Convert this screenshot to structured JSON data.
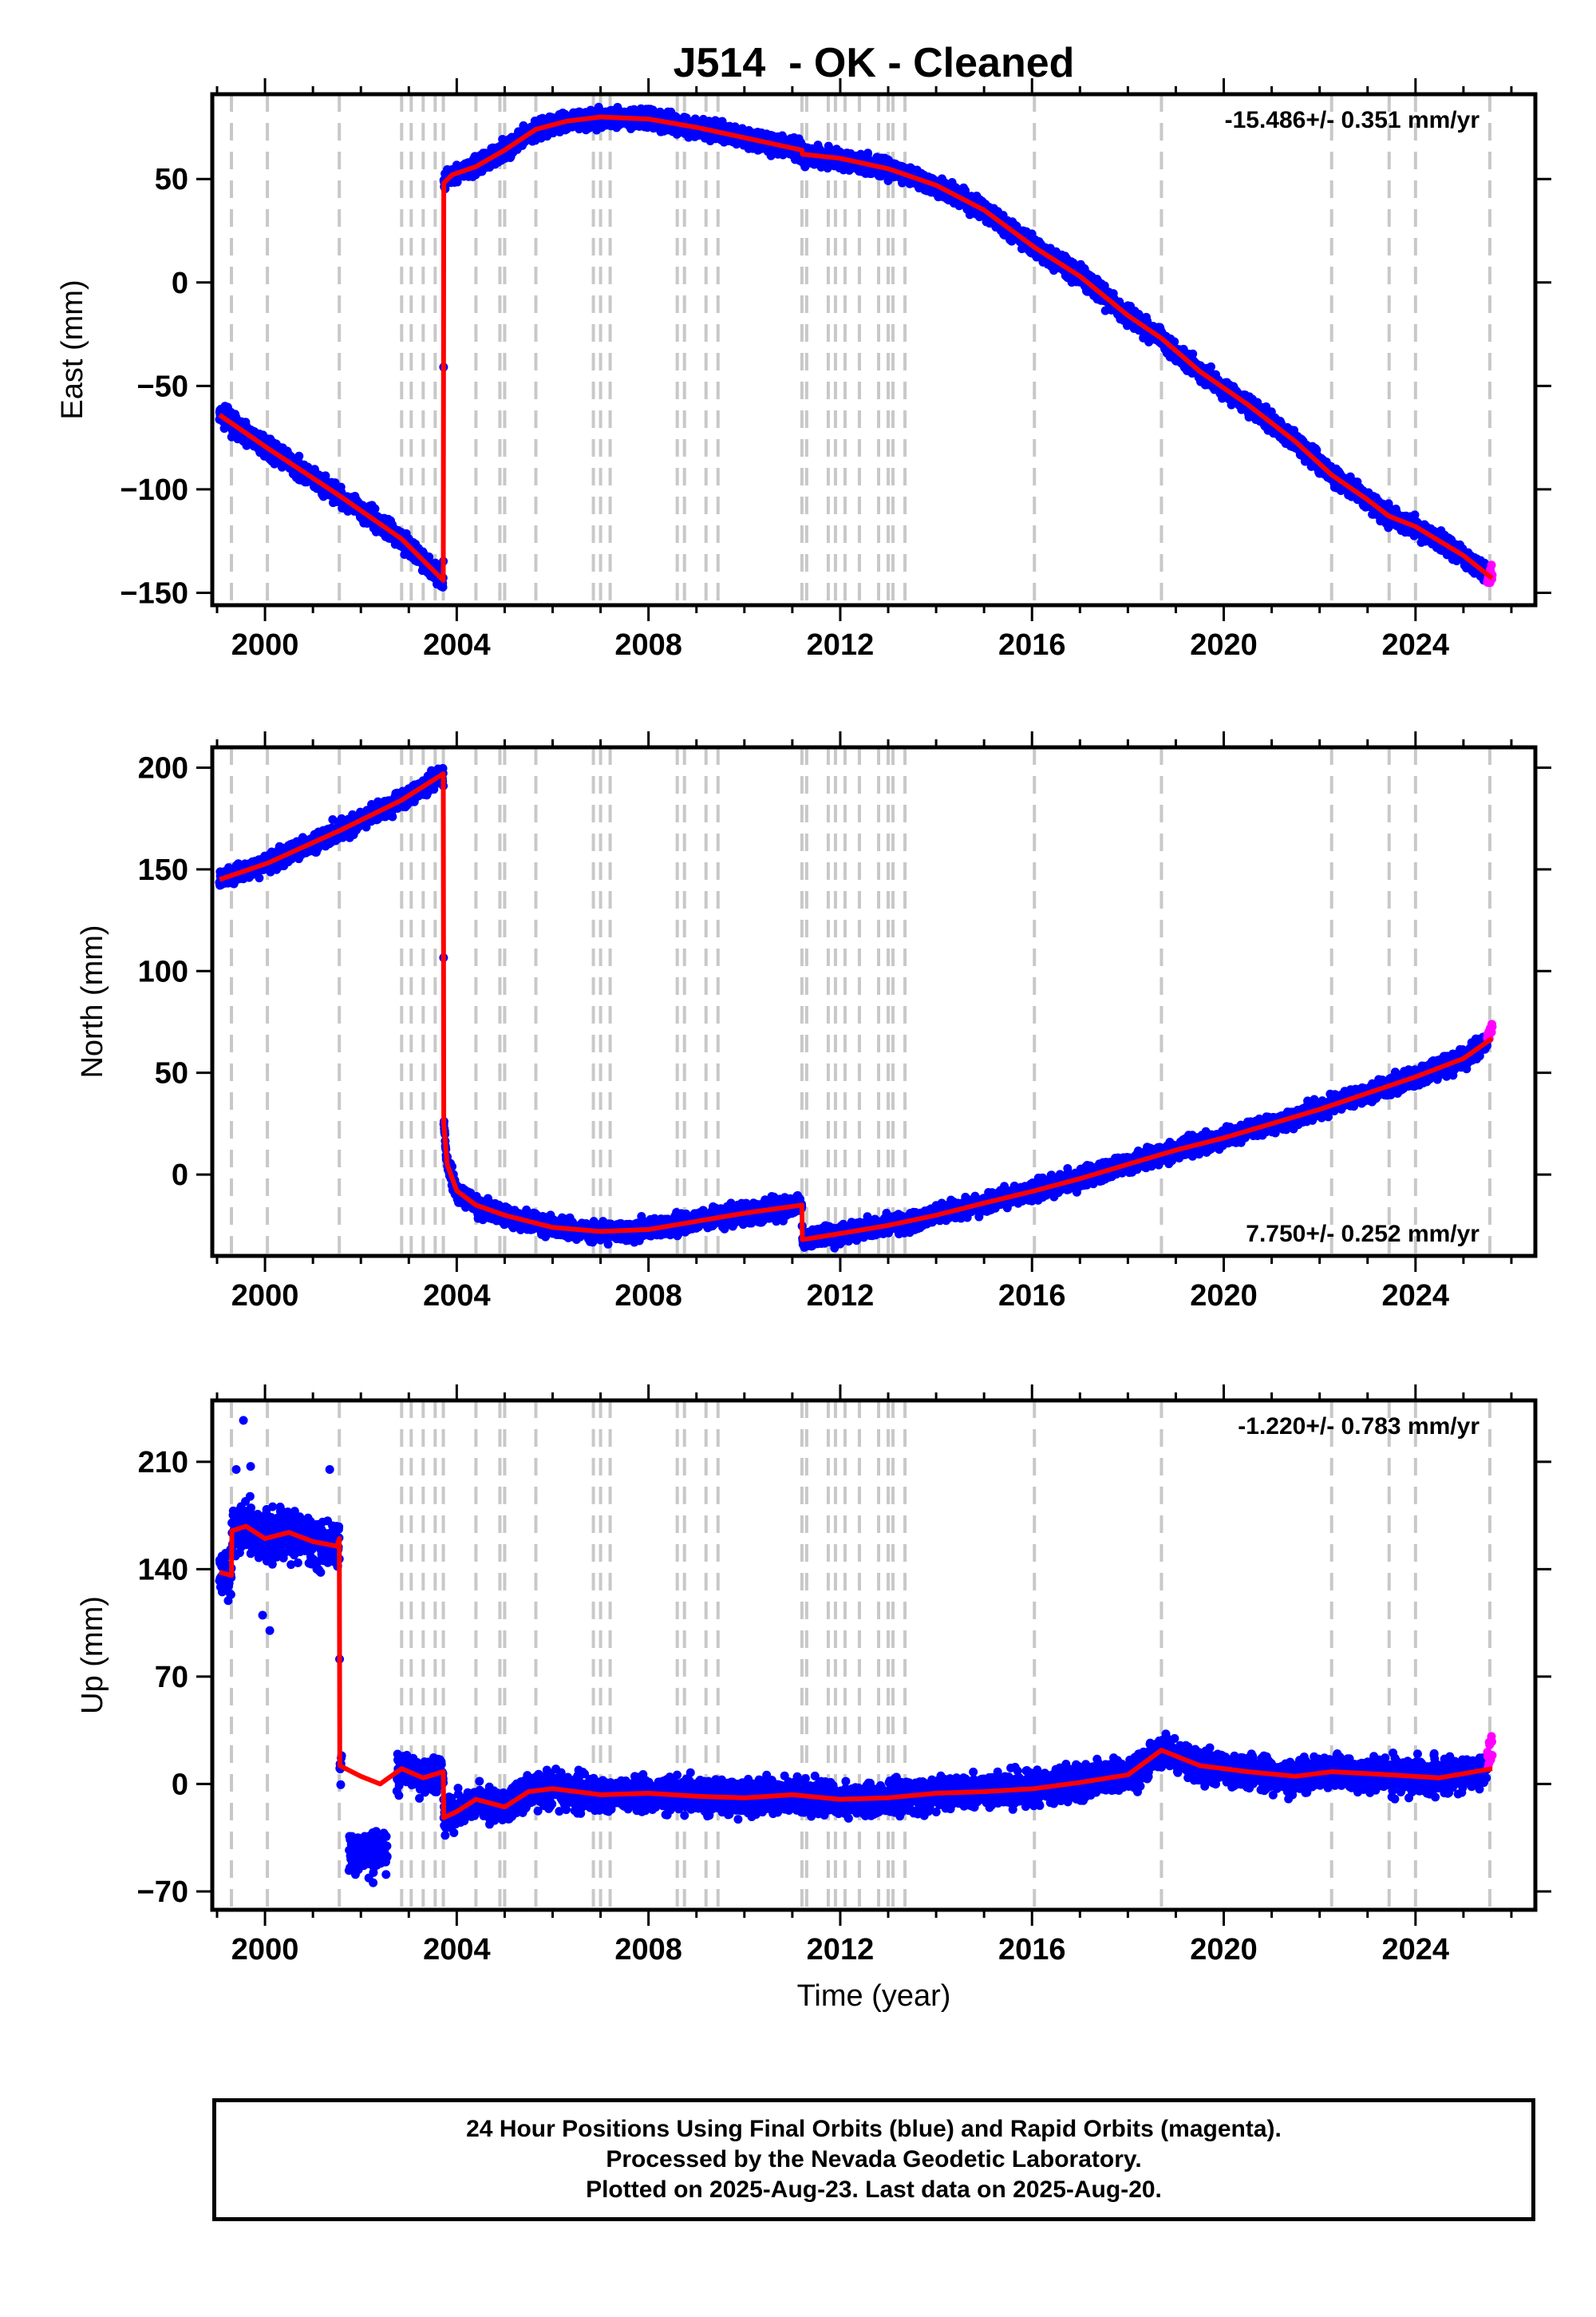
{
  "title": "J514  - OK - Cleaned",
  "xlabel": "Time (year)",
  "x_ticks": [
    2000,
    2004,
    2008,
    2012,
    2016,
    2020,
    2024
  ],
  "x_range": [
    1998.9,
    2026.5
  ],
  "colors": {
    "final": "#0000ff",
    "rapid": "#ff00ff",
    "model": "#ff0000",
    "steps": "#c8c8c8"
  },
  "step_dates": [
    1999.3,
    2000.05,
    2001.55,
    2002.85,
    2003.05,
    2003.3,
    2003.55,
    2003.72,
    2004.4,
    2004.9,
    2005.0,
    2005.65,
    2006.85,
    2007.0,
    2007.2,
    2008.6,
    2008.75,
    2009.2,
    2009.45,
    2011.2,
    2011.3,
    2011.75,
    2011.9,
    2012.1,
    2012.4,
    2012.8,
    2013.0,
    2013.1,
    2013.35,
    2016.05,
    2018.7,
    2022.25,
    2023.45,
    2024.0,
    2025.55
  ],
  "chart_data": [
    {
      "type": "scatter",
      "component": "east",
      "ylabel": "East (mm)",
      "y_ticks": [
        50,
        0,
        -50,
        -100,
        -150
      ],
      "ylim": [
        -156,
        91
      ],
      "rate": "-15.486+/- 0.351 mm/yr",
      "rate_position": "top-right",
      "model": {
        "x": [
          1999.05,
          1999.3,
          2000.05,
          2001.55,
          2002.85,
          2003.72,
          2003.73,
          2003.9,
          2004.4,
          2005.0,
          2005.65,
          2006.3,
          2007.0,
          2008.0,
          2009.0,
          2010.0,
          2011.2,
          2011.21,
          2012.0,
          2013.0,
          2014.0,
          2015.0,
          2016.05,
          2017.0,
          2018.0,
          2018.7,
          2019.5,
          2020.5,
          2021.5,
          2022.25,
          2023.0,
          2023.45,
          2024.0,
          2025.0,
          2025.6
        ],
        "y": [
          -64,
          -68,
          -80,
          -103,
          -124,
          -144,
          48,
          52,
          56,
          64,
          74,
          78,
          80,
          79,
          75,
          70,
          64,
          62,
          60,
          55,
          47,
          35,
          17,
          3,
          -16,
          -27,
          -43,
          -59,
          -77,
          -93,
          -105,
          -113,
          -118,
          -132,
          -143
        ]
      },
      "rapid": {
        "x": [
          2025.5,
          2025.6
        ],
        "y": [
          -143,
          -140
        ]
      }
    },
    {
      "type": "scatter",
      "component": "north",
      "ylabel": "North (mm)",
      "y_ticks": [
        200,
        150,
        100,
        50,
        0
      ],
      "ylim": [
        -40,
        210
      ],
      "rate": "7.750+/- 0.252 mm/yr",
      "rate_position": "bottom-right",
      "model": {
        "x": [
          1999.05,
          1999.3,
          2000.05,
          2001.55,
          2002.85,
          2003.72,
          2003.73,
          2003.8,
          2004.0,
          2004.4,
          2005.0,
          2006.0,
          2007.0,
          2008.0,
          2009.0,
          2010.0,
          2011.2,
          2011.21,
          2012.0,
          2013.0,
          2014.0,
          2015.0,
          2016.05,
          2017.0,
          2018.0,
          2019.0,
          2020.0,
          2021.0,
          2022.0,
          2023.0,
          2024.0,
          2025.0,
          2025.6
        ],
        "y": [
          145,
          147,
          153,
          169,
          184,
          197,
          25,
          5,
          -8,
          -15,
          -20,
          -26,
          -28,
          -27,
          -23,
          -19,
          -15,
          -32,
          -29,
          -25,
          -20,
          -14,
          -8,
          -2,
          5,
          12,
          18,
          25,
          32,
          40,
          48,
          57,
          67
        ]
      },
      "rapid": {
        "x": [
          2025.5,
          2025.6
        ],
        "y": [
          68,
          72
        ]
      }
    },
    {
      "type": "scatter",
      "component": "up",
      "ylabel": "Up (mm)",
      "y_ticks": [
        210,
        140,
        70,
        0,
        -70
      ],
      "ylim": [
        -82,
        250
      ],
      "rate": "-1.220+/- 0.783 mm/yr",
      "rate_position": "top-right",
      "model": {
        "x": [
          1999.05,
          1999.3,
          1999.31,
          1999.6,
          2000.0,
          2000.5,
          2001.0,
          2001.5,
          2001.55,
          2001.56,
          2002.0,
          2002.4,
          2002.85,
          2003.3,
          2003.72,
          2003.73,
          2004.0,
          2004.4,
          2005.0,
          2005.5,
          2006.0,
          2007.0,
          2008.0,
          2009.0,
          2010.0,
          2011.0,
          2012.0,
          2013.0,
          2014.0,
          2015.0,
          2016.05,
          2017.0,
          2018.0,
          2018.7,
          2019.5,
          2020.5,
          2021.5,
          2022.25,
          2023.45,
          2024.5,
          2025.6
        ],
        "y": [
          138,
          136,
          165,
          168,
          160,
          164,
          158,
          155,
          160,
          12,
          5,
          0,
          10,
          4,
          8,
          -22,
          -18,
          -10,
          -15,
          -5,
          -3,
          -7,
          -6,
          -8,
          -9,
          -7,
          -10,
          -9,
          -6,
          -5,
          -3,
          1,
          6,
          22,
          12,
          8,
          5,
          8,
          6,
          4,
          10
        ]
      },
      "rapid": {
        "x": [
          2025.5,
          2025.6
        ],
        "y": [
          15,
          25
        ]
      }
    }
  ],
  "caption": [
    "24 Hour Positions Using Final Orbits (blue) and Rapid Orbits (magenta).",
    "Processed by the Nevada Geodetic Laboratory.",
    "Plotted on 2025-Aug-23. Last data on 2025-Aug-20."
  ]
}
